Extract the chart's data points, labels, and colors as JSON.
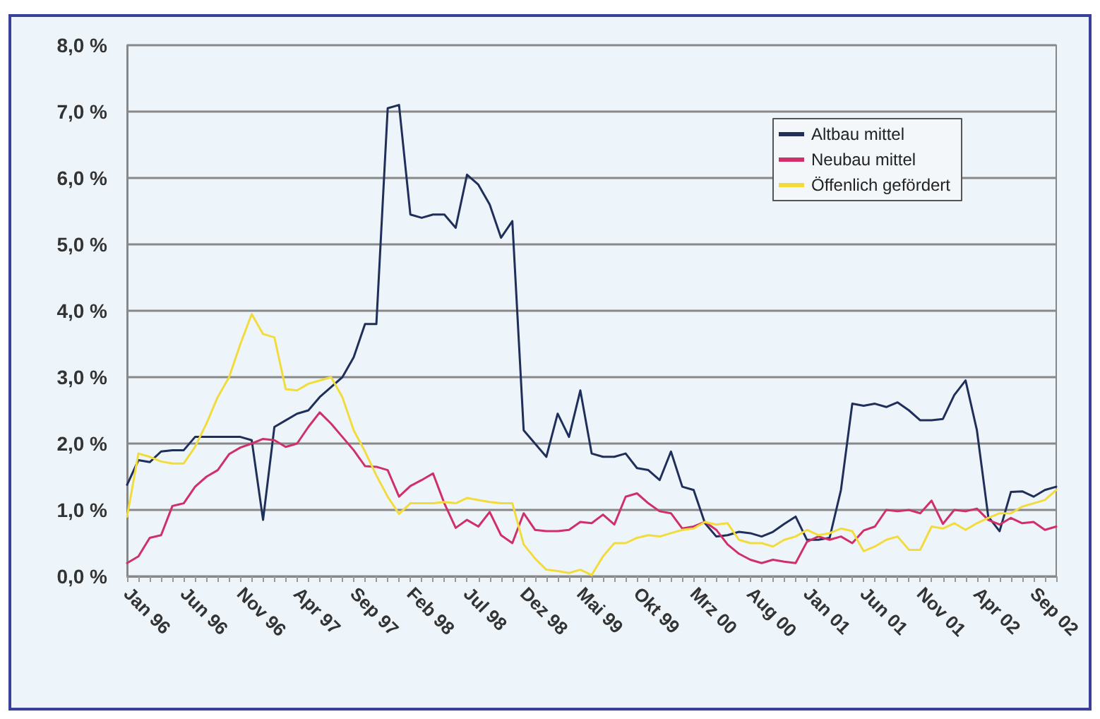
{
  "chart_data": {
    "type": "line",
    "categories": [
      "Jan 96",
      null,
      null,
      null,
      null,
      "Jun 96",
      null,
      null,
      null,
      null,
      "Nov 96",
      null,
      null,
      null,
      null,
      "Apr 97",
      null,
      null,
      null,
      null,
      "Sep 97",
      null,
      null,
      null,
      null,
      "Feb 98",
      null,
      null,
      null,
      null,
      "Jul 98",
      null,
      null,
      null,
      null,
      "Dez 98",
      null,
      null,
      null,
      null,
      "Mai 99",
      null,
      null,
      null,
      null,
      "Okt 99",
      null,
      null,
      null,
      null,
      "Mrz 00",
      null,
      null,
      null,
      null,
      "Aug 00",
      null,
      null,
      null,
      null,
      "Jan 01",
      null,
      null,
      null,
      null,
      "Jun 01",
      null,
      null,
      null,
      null,
      "Nov 01",
      null,
      null,
      null,
      null,
      "Apr 02",
      null,
      null,
      null,
      null,
      "Sep 02",
      null,
      null
    ],
    "series": [
      {
        "name": "Altbau mittel",
        "color": "#1f2f5a",
        "values": [
          1.38,
          1.75,
          1.72,
          1.88,
          1.9,
          1.9,
          2.1,
          2.1,
          2.1,
          2.1,
          2.1,
          2.05,
          0.85,
          2.25,
          2.35,
          2.45,
          2.5,
          2.7,
          2.85,
          3.0,
          3.3,
          3.8,
          3.8,
          7.05,
          7.1,
          5.45,
          5.4,
          5.45,
          5.45,
          5.25,
          6.05,
          5.9,
          5.6,
          5.1,
          5.35,
          2.2,
          2.0,
          1.8,
          2.45,
          2.1,
          2.8,
          1.85,
          1.8,
          1.8,
          1.85,
          1.63,
          1.6,
          1.45,
          1.88,
          1.35,
          1.3,
          0.8,
          0.6,
          0.62,
          0.67,
          0.65,
          0.6,
          0.67,
          0.79,
          0.9,
          0.55,
          0.55,
          0.58,
          1.3,
          2.6,
          2.57,
          2.6,
          2.55,
          2.62,
          2.5,
          2.35,
          2.35,
          2.37,
          2.73,
          2.95,
          2.2,
          0.9,
          0.68,
          1.27,
          1.28,
          1.2,
          1.3,
          1.35
        ]
      },
      {
        "name": "Neubau mittel",
        "color": "#d0306a",
        "values": [
          0.2,
          0.3,
          0.58,
          0.62,
          1.06,
          1.1,
          1.35,
          1.5,
          1.6,
          1.84,
          1.94,
          2.0,
          2.07,
          2.05,
          1.95,
          2.0,
          2.25,
          2.47,
          2.3,
          2.1,
          1.9,
          1.66,
          1.65,
          1.6,
          1.2,
          1.36,
          1.45,
          1.55,
          1.1,
          0.73,
          0.85,
          0.75,
          0.97,
          0.62,
          0.5,
          0.95,
          0.7,
          0.68,
          0.68,
          0.7,
          0.82,
          0.8,
          0.93,
          0.78,
          1.2,
          1.25,
          1.1,
          0.98,
          0.95,
          0.72,
          0.75,
          0.82,
          0.7,
          0.48,
          0.34,
          0.25,
          0.2,
          0.25,
          0.22,
          0.2,
          0.52,
          0.6,
          0.55,
          0.6,
          0.5,
          0.69,
          0.75,
          1.0,
          0.98,
          1.0,
          0.95,
          1.14,
          0.79,
          1.0,
          0.98,
          1.02,
          0.85,
          0.78,
          0.88,
          0.8,
          0.82,
          0.7,
          0.75
        ]
      },
      {
        "name": "Öffenlich gefördert",
        "color": "#f2dc3c",
        "values": [
          0.9,
          1.85,
          1.8,
          1.73,
          1.7,
          1.7,
          1.95,
          2.3,
          2.7,
          3.0,
          3.5,
          3.95,
          3.65,
          3.6,
          2.82,
          2.8,
          2.9,
          2.95,
          3.0,
          2.7,
          2.2,
          1.88,
          1.52,
          1.2,
          0.94,
          1.1,
          1.1,
          1.1,
          1.12,
          1.1,
          1.18,
          1.15,
          1.12,
          1.1,
          1.1,
          0.48,
          0.27,
          0.1,
          0.08,
          0.05,
          0.1,
          0.02,
          0.3,
          0.5,
          0.5,
          0.58,
          0.62,
          0.6,
          0.65,
          0.7,
          0.72,
          0.82,
          0.78,
          0.8,
          0.55,
          0.5,
          0.5,
          0.45,
          0.55,
          0.6,
          0.7,
          0.62,
          0.65,
          0.72,
          0.68,
          0.38,
          0.45,
          0.55,
          0.6,
          0.4,
          0.4,
          0.75,
          0.72,
          0.8,
          0.7,
          0.8,
          0.88,
          0.95,
          0.95,
          1.05,
          1.1,
          1.15,
          1.3
        ]
      }
    ],
    "ylim": [
      0,
      8
    ],
    "yticks": [
      {
        "value": 0,
        "label": "0,0 %"
      },
      {
        "value": 1,
        "label": "1,0 %"
      },
      {
        "value": 2,
        "label": "2,0 %"
      },
      {
        "value": 3,
        "label": "3,0 %"
      },
      {
        "value": 4,
        "label": "4,0 %"
      },
      {
        "value": 5,
        "label": "5,0 %"
      },
      {
        "value": 6,
        "label": "6,0 %"
      },
      {
        "value": 7,
        "label": "7,0 %"
      },
      {
        "value": 8,
        "label": "8,0 %"
      }
    ],
    "grid": "y",
    "legend": "top right",
    "line_style": "solid"
  }
}
